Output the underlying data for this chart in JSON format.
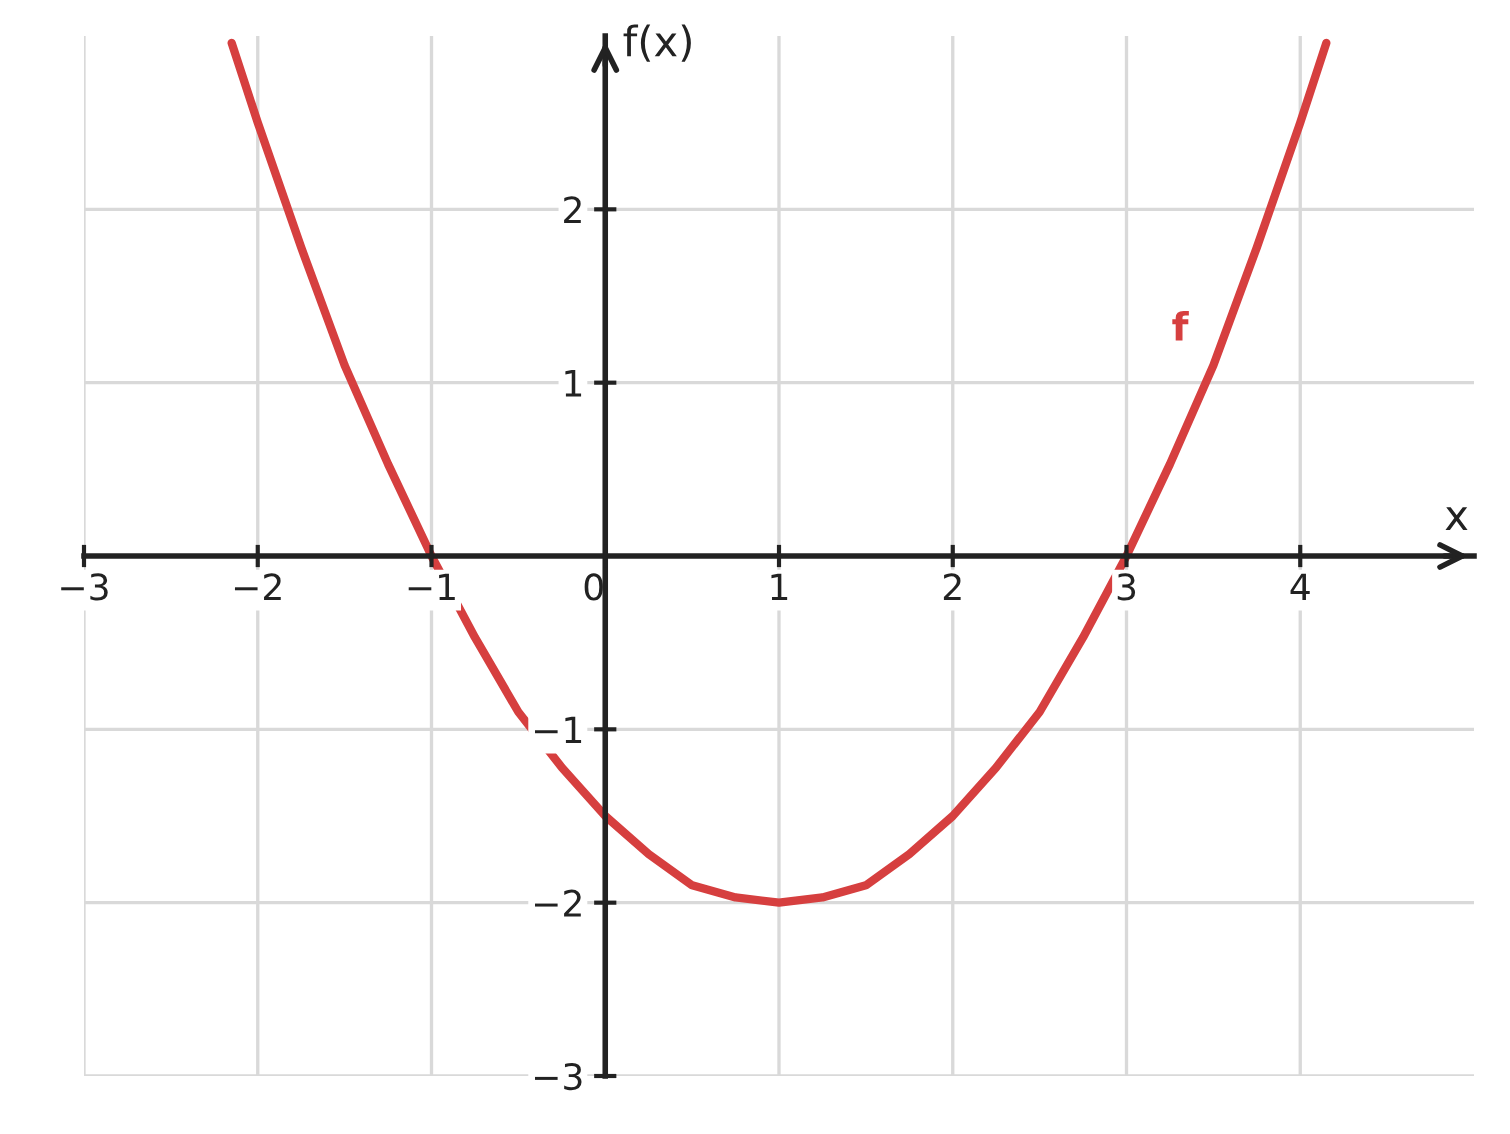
{
  "chart_data": {
    "type": "line",
    "xlabel": "x",
    "ylabel": "f(x)",
    "xlim": [
      -3,
      5
    ],
    "ylim": [
      -3,
      3
    ],
    "xticks": [
      -3,
      -2,
      -1,
      {
        "value": 0,
        "label": "0"
      },
      1,
      2,
      3,
      4
    ],
    "yticks": [
      -3,
      -2,
      -1,
      1,
      2
    ],
    "grid": true,
    "series": [
      {
        "name": "f",
        "color": "#d63f3f",
        "x": [
          -2.15,
          -2,
          -1.75,
          -1.5,
          -1.25,
          -1,
          -0.75,
          -0.5,
          -0.25,
          0,
          0.25,
          0.5,
          0.75,
          1,
          1.25,
          1.5,
          1.75,
          2,
          2.25,
          2.5,
          2.75,
          3,
          3.25,
          3.5,
          3.75,
          4,
          4.15
        ],
        "values": [
          2.96,
          2.5,
          1.78,
          1.1,
          0.53,
          0,
          -0.47,
          -0.9,
          -1.22,
          -1.5,
          -1.72,
          -1.9,
          -1.97,
          -2,
          -1.97,
          -1.9,
          -1.72,
          -1.5,
          -1.22,
          -0.9,
          -0.47,
          0,
          0.53,
          1.1,
          1.78,
          2.5,
          2.96
        ]
      }
    ]
  }
}
